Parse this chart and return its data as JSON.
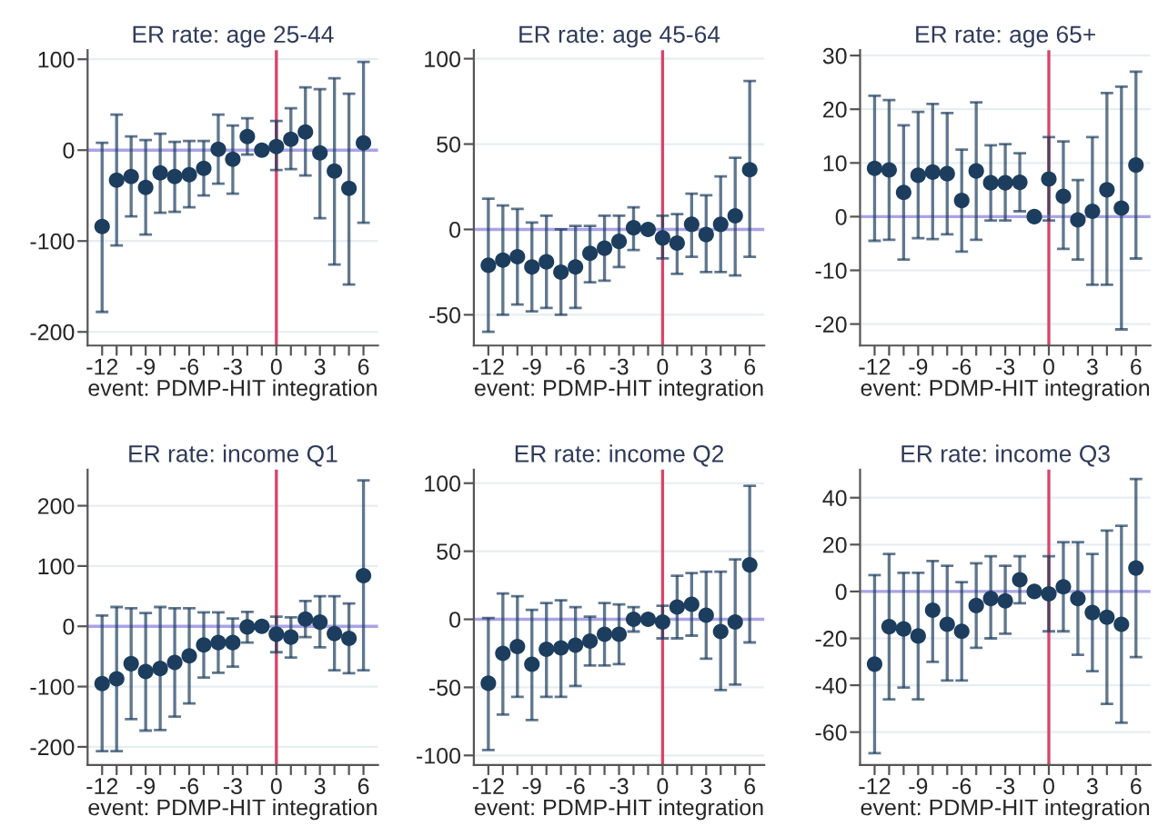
{
  "chart_data": [
    {
      "type": "scatter",
      "title": "ER rate: age 25-44",
      "xlabel": "event: PDMP-HIT integration",
      "x": [
        -12,
        -11,
        -10,
        -9,
        -8,
        -7,
        -6,
        -5,
        -4,
        -3,
        -2,
        -1,
        0,
        1,
        2,
        3,
        4,
        5,
        6
      ],
      "series": [
        {
          "color": "#1c3d5e",
          "values": [
            -84,
            -33,
            -29,
            -41,
            -25,
            -29,
            -27,
            -20,
            1,
            -10,
            15,
            0,
            4,
            12,
            20,
            -3,
            -23,
            -42,
            8
          ],
          "errors": [
            [
              -178,
              8
            ],
            [
              -105,
              39
            ],
            [
              -73,
              15
            ],
            [
              -93,
              11
            ],
            [
              -69,
              18
            ],
            [
              -68,
              9
            ],
            [
              -63,
              10
            ],
            [
              -50,
              10
            ],
            [
              -37,
              39
            ],
            [
              -48,
              27
            ],
            [
              -5,
              35
            ],
            null,
            [
              -22,
              32
            ],
            [
              -21,
              46
            ],
            [
              -28,
              69
            ],
            [
              -75,
              67
            ],
            [
              -126,
              79
            ],
            [
              -148,
              62
            ],
            [
              -80,
              97
            ]
          ]
        }
      ],
      "xlim": [
        -13,
        7
      ],
      "xticks": [
        -12,
        {
          "value": -11,
          "label": null
        },
        {
          "value": -10,
          "label": null
        },
        -9,
        {
          "value": -8,
          "label": null
        },
        {
          "value": -7,
          "label": null
        },
        -6,
        {
          "value": -5,
          "label": null
        },
        {
          "value": -4,
          "label": null
        },
        -3,
        {
          "value": -2,
          "label": null
        },
        {
          "value": -1,
          "label": null
        },
        0,
        {
          "value": 1,
          "label": null
        },
        {
          "value": 2,
          "label": null
        },
        3,
        {
          "value": 4,
          "label": null
        },
        {
          "value": 5,
          "label": null
        },
        6
      ],
      "ylim": [
        -215,
        110
      ],
      "yticks": [
        -200,
        -100,
        0,
        100
      ],
      "grid": "y",
      "marker": "circle",
      "ref_lines": [
        {
          "axis": "x",
          "value": 0,
          "color": "#d9446a"
        },
        {
          "axis": "y",
          "value": 0,
          "color": "#a9a3e6"
        }
      ]
    },
    {
      "type": "scatter",
      "title": "ER rate: age 45-64",
      "xlabel": "event: PDMP-HIT integration",
      "x": [
        -12,
        -11,
        -10,
        -9,
        -8,
        -7,
        -6,
        -5,
        -4,
        -3,
        -2,
        -1,
        0,
        1,
        2,
        3,
        4,
        5,
        6
      ],
      "series": [
        {
          "color": "#1c3d5e",
          "values": [
            -21,
            -18,
            -16,
            -22,
            -19,
            -25,
            -22,
            -14,
            -11,
            -7,
            1,
            0,
            -5,
            -8,
            3,
            -3,
            3,
            8,
            35
          ],
          "errors": [
            [
              -60,
              18
            ],
            [
              -50,
              14
            ],
            [
              -44,
              12
            ],
            [
              -48,
              4
            ],
            [
              -46,
              8
            ],
            [
              -50,
              0
            ],
            [
              -46,
              2
            ],
            [
              -31,
              2
            ],
            [
              -30,
              8
            ],
            [
              -22,
              8
            ],
            [
              -12,
              13
            ],
            null,
            [
              -17,
              8
            ],
            [
              -26,
              9
            ],
            [
              -16,
              21
            ],
            [
              -25,
              20
            ],
            [
              -25,
              31
            ],
            [
              -27,
              42
            ],
            [
              -16,
              87
            ]
          ]
        }
      ],
      "xlim": [
        -13,
        7
      ],
      "xticks": [
        -12,
        {
          "value": -11,
          "label": null
        },
        {
          "value": -10,
          "label": null
        },
        -9,
        {
          "value": -8,
          "label": null
        },
        {
          "value": -7,
          "label": null
        },
        -6,
        {
          "value": -5,
          "label": null
        },
        {
          "value": -4,
          "label": null
        },
        -3,
        {
          "value": -2,
          "label": null
        },
        {
          "value": -1,
          "label": null
        },
        0,
        {
          "value": 1,
          "label": null
        },
        {
          "value": 2,
          "label": null
        },
        3,
        {
          "value": 4,
          "label": null
        },
        {
          "value": 5,
          "label": null
        },
        6
      ],
      "ylim": [
        -68,
        105
      ],
      "yticks": [
        -50,
        0,
        50,
        100
      ],
      "grid": "y",
      "marker": "circle",
      "ref_lines": [
        {
          "axis": "x",
          "value": 0,
          "color": "#d9446a"
        },
        {
          "axis": "y",
          "value": 0,
          "color": "#a9a3e6"
        }
      ]
    },
    {
      "type": "scatter",
      "title": "ER rate: age 65+",
      "xlabel": "event: PDMP-HIT integration",
      "x": [
        -12,
        -11,
        -10,
        -9,
        -8,
        -7,
        -6,
        -5,
        -4,
        -3,
        -2,
        -1,
        0,
        1,
        2,
        3,
        4,
        5,
        6
      ],
      "series": [
        {
          "color": "#1c3d5e",
          "values": [
            9,
            8.7,
            4.5,
            7.7,
            8.3,
            8,
            3,
            8.5,
            6.3,
            6.3,
            6.4,
            0,
            7,
            3.8,
            -0.6,
            1,
            5,
            1.6,
            9.6
          ],
          "errors": [
            [
              -4.5,
              22.5
            ],
            [
              -4.3,
              21.7
            ],
            [
              -8,
              17
            ],
            [
              -4,
              19.5
            ],
            [
              -4.2,
              21
            ],
            [
              -3.3,
              19.3
            ],
            [
              -6.5,
              12.5
            ],
            [
              -4.3,
              21.3
            ],
            [
              -0.7,
              13.3
            ],
            [
              -0.7,
              13.5
            ],
            [
              1,
              11.8
            ],
            null,
            [
              -0.7,
              14.8
            ],
            [
              -6,
              14
            ],
            [
              -8,
              6.8
            ],
            [
              -12.7,
              14.8
            ],
            [
              -12.7,
              23
            ],
            [
              -21,
              24.2
            ],
            [
              -7.8,
              27
            ]
          ]
        }
      ],
      "xlim": [
        -13,
        7
      ],
      "xticks": [
        -12,
        {
          "value": -11,
          "label": null
        },
        {
          "value": -10,
          "label": null
        },
        -9,
        {
          "value": -8,
          "label": null
        },
        {
          "value": -7,
          "label": null
        },
        -6,
        {
          "value": -5,
          "label": null
        },
        {
          "value": -4,
          "label": null
        },
        -3,
        {
          "value": -2,
          "label": null
        },
        {
          "value": -1,
          "label": null
        },
        0,
        {
          "value": 1,
          "label": null
        },
        {
          "value": 2,
          "label": null
        },
        3,
        {
          "value": 4,
          "label": null
        },
        {
          "value": 5,
          "label": null
        },
        6
      ],
      "ylim": [
        -24,
        31
      ],
      "yticks": [
        -20,
        -10,
        0,
        10,
        20,
        30
      ],
      "grid": "y",
      "marker": "circle",
      "ref_lines": [
        {
          "axis": "x",
          "value": 0,
          "color": "#d9446a"
        },
        {
          "axis": "y",
          "value": 0,
          "color": "#a9a3e6"
        }
      ]
    },
    {
      "type": "scatter",
      "title": "ER rate: income Q1",
      "xlabel": "event: PDMP-HIT integration",
      "x": [
        -12,
        -11,
        -10,
        -9,
        -8,
        -7,
        -6,
        -5,
        -4,
        -3,
        -2,
        -1,
        0,
        1,
        2,
        3,
        4,
        5,
        6
      ],
      "series": [
        {
          "color": "#1c3d5e",
          "values": [
            -95,
            -87,
            -62,
            -75,
            -70,
            -60,
            -49,
            -31,
            -27,
            -27,
            -1,
            0,
            -13,
            -18,
            12,
            7,
            -12,
            -20,
            84
          ],
          "errors": [
            [
              -207,
              18
            ],
            [
              -207,
              32
            ],
            [
              -154,
              30
            ],
            [
              -173,
              22
            ],
            [
              -172,
              32
            ],
            [
              -150,
              30
            ],
            [
              -128,
              30
            ],
            [
              -85,
              23
            ],
            [
              -77,
              23
            ],
            [
              -67,
              13
            ],
            [
              -27,
              24
            ],
            null,
            [
              -43,
              16
            ],
            [
              -52,
              15
            ],
            [
              -18,
              42
            ],
            [
              -35,
              50
            ],
            [
              -73,
              50
            ],
            [
              -78,
              38
            ],
            [
              -73,
              242
            ]
          ]
        }
      ],
      "xlim": [
        -13,
        7
      ],
      "xticks": [
        -12,
        {
          "value": -11,
          "label": null
        },
        {
          "value": -10,
          "label": null
        },
        -9,
        {
          "value": -8,
          "label": null
        },
        {
          "value": -7,
          "label": null
        },
        -6,
        {
          "value": -5,
          "label": null
        },
        {
          "value": -4,
          "label": null
        },
        -3,
        {
          "value": -2,
          "label": null
        },
        {
          "value": -1,
          "label": null
        },
        0,
        {
          "value": 1,
          "label": null
        },
        {
          "value": 2,
          "label": null
        },
        3,
        {
          "value": 4,
          "label": null
        },
        {
          "value": 5,
          "label": null
        },
        6
      ],
      "ylim": [
        -230,
        260
      ],
      "yticks": [
        -200,
        -100,
        0,
        100,
        200
      ],
      "grid": "y",
      "marker": "circle",
      "ref_lines": [
        {
          "axis": "x",
          "value": 0,
          "color": "#d9446a"
        },
        {
          "axis": "y",
          "value": 0,
          "color": "#a9a3e6"
        }
      ]
    },
    {
      "type": "scatter",
      "title": "ER rate: income Q2",
      "xlabel": "event: PDMP-HIT integration",
      "x": [
        -12,
        -11,
        -10,
        -9,
        -8,
        -7,
        -6,
        -5,
        -4,
        -3,
        -2,
        -1,
        0,
        1,
        2,
        3,
        4,
        5,
        6
      ],
      "series": [
        {
          "color": "#1c3d5e",
          "values": [
            -47,
            -25,
            -20,
            -33,
            -22,
            -21,
            -19,
            -16,
            -11,
            -11,
            0,
            0,
            -2,
            9,
            11,
            3,
            -9,
            -2,
            40
          ],
          "errors": [
            [
              -96,
              1
            ],
            [
              -70,
              19
            ],
            [
              -57,
              17
            ],
            [
              -74,
              7
            ],
            [
              -57,
              12
            ],
            [
              -57,
              14
            ],
            [
              -49,
              9
            ],
            [
              -34,
              2
            ],
            [
              -34,
              12
            ],
            [
              -33,
              11
            ],
            [
              -9,
              9
            ],
            null,
            [
              -14,
              10
            ],
            [
              -14,
              32
            ],
            [
              -12,
              34
            ],
            [
              -29,
              35
            ],
            [
              -52,
              35
            ],
            [
              -48,
              44
            ],
            [
              -17,
              98
            ]
          ]
        }
      ],
      "xlim": [
        -13,
        7
      ],
      "xticks": [
        -12,
        {
          "value": -11,
          "label": null
        },
        {
          "value": -10,
          "label": null
        },
        -9,
        {
          "value": -8,
          "label": null
        },
        {
          "value": -7,
          "label": null
        },
        -6,
        {
          "value": -5,
          "label": null
        },
        {
          "value": -4,
          "label": null
        },
        -3,
        {
          "value": -2,
          "label": null
        },
        {
          "value": -1,
          "label": null
        },
        0,
        {
          "value": 1,
          "label": null
        },
        {
          "value": 2,
          "label": null
        },
        3,
        {
          "value": 4,
          "label": null
        },
        {
          "value": 5,
          "label": null
        },
        6
      ],
      "ylim": [
        -107,
        110
      ],
      "yticks": [
        -100,
        -50,
        0,
        50,
        100
      ],
      "grid": "y",
      "marker": "circle",
      "ref_lines": [
        {
          "axis": "x",
          "value": 0,
          "color": "#d9446a"
        },
        {
          "axis": "y",
          "value": 0,
          "color": "#a9a3e6"
        }
      ]
    },
    {
      "type": "scatter",
      "title": "ER rate: income Q3",
      "xlabel": "event: PDMP-HIT integration",
      "x": [
        -12,
        -11,
        -10,
        -9,
        -8,
        -7,
        -6,
        -5,
        -4,
        -3,
        -2,
        -1,
        0,
        1,
        2,
        3,
        4,
        5,
        6
      ],
      "series": [
        {
          "color": "#1c3d5e",
          "values": [
            -31,
            -15,
            -16,
            -19,
            -8,
            -14,
            -17,
            -6,
            -3,
            -4,
            5,
            0,
            -1,
            2,
            -3,
            -9,
            -11,
            -14,
            10
          ],
          "errors": [
            [
              -69,
              7
            ],
            [
              -46,
              16
            ],
            [
              -41,
              8
            ],
            [
              -46,
              8
            ],
            [
              -30,
              13
            ],
            [
              -38,
              11
            ],
            [
              -38,
              4
            ],
            [
              -24,
              12
            ],
            [
              -20,
              15
            ],
            [
              -18,
              11
            ],
            [
              -5,
              15
            ],
            null,
            [
              -17,
              15
            ],
            [
              -17,
              21
            ],
            [
              -27,
              21
            ],
            [
              -34,
              16
            ],
            [
              -48,
              26
            ],
            [
              -56,
              28
            ],
            [
              -28,
              48
            ]
          ]
        }
      ],
      "xlim": [
        -13,
        7
      ],
      "xticks": [
        -12,
        {
          "value": -11,
          "label": null
        },
        {
          "value": -10,
          "label": null
        },
        -9,
        {
          "value": -8,
          "label": null
        },
        {
          "value": -7,
          "label": null
        },
        -6,
        {
          "value": -5,
          "label": null
        },
        {
          "value": -4,
          "label": null
        },
        -3,
        {
          "value": -2,
          "label": null
        },
        {
          "value": -1,
          "label": null
        },
        0,
        {
          "value": 1,
          "label": null
        },
        {
          "value": 2,
          "label": null
        },
        3,
        {
          "value": 4,
          "label": null
        },
        {
          "value": 5,
          "label": null
        },
        6
      ],
      "ylim": [
        -74,
        52
      ],
      "yticks": [
        -60,
        -40,
        -20,
        0,
        20,
        40
      ],
      "grid": "y",
      "marker": "circle",
      "ref_lines": [
        {
          "axis": "x",
          "value": 0,
          "color": "#d9446a"
        },
        {
          "axis": "y",
          "value": 0,
          "color": "#a9a3e6"
        }
      ]
    }
  ]
}
